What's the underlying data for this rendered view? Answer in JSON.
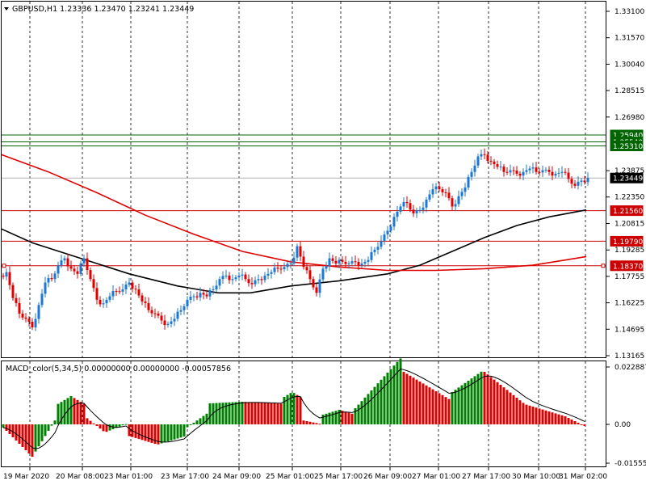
{
  "header": {
    "dropdown_icon": "triangle-down-icon",
    "text": "GBPUSD,H1  1.23336 1.23470 1.23241 1.23449"
  },
  "indicator": {
    "label": "MACD_color(5,34,5) 0.00000000 0.00000000 -0.00057856"
  },
  "price_axis": {
    "ticks": [
      "1.33100",
      "1.31570",
      "1.30040",
      "1.28515",
      "1.26980",
      "1.23875",
      "1.22350",
      "1.20815",
      "1.19285",
      "1.17755",
      "1.16225",
      "1.14695",
      "1.13165"
    ],
    "current_price": "1.23449"
  },
  "macd_axis": {
    "ticks": [
      "0.0228876",
      "0.00",
      "-0.0155523"
    ]
  },
  "time_axis": {
    "labels": [
      "19 Mar 2020",
      "20 Mar 08:00",
      "23 Mar 01:00",
      "23 Mar 17:00",
      "24 Mar 09:00",
      "25 Mar 01:00",
      "25 Mar 17:00",
      "26 Mar 09:00",
      "27 Mar 01:00",
      "27 Mar 17:00",
      "30 Mar 10:00",
      "31 Mar 02:00"
    ]
  },
  "levels": [
    {
      "price": "1.25940",
      "color": "#006400"
    },
    {
      "price": "1.25540",
      "color": "#006400"
    },
    {
      "price": "1.25310",
      "color": "#006400"
    },
    {
      "price": "1.21560",
      "color": "#cc0000"
    },
    {
      "price": "1.19790",
      "color": "#cc0000"
    },
    {
      "price": "1.18370",
      "color": "#cc0000"
    }
  ],
  "colors": {
    "bull": "#1e78d2",
    "bear": "#e00000",
    "ma_black": "#000000",
    "ma_red": "#e00000",
    "macd_green": "#008000",
    "macd_red": "#e00000"
  }
}
